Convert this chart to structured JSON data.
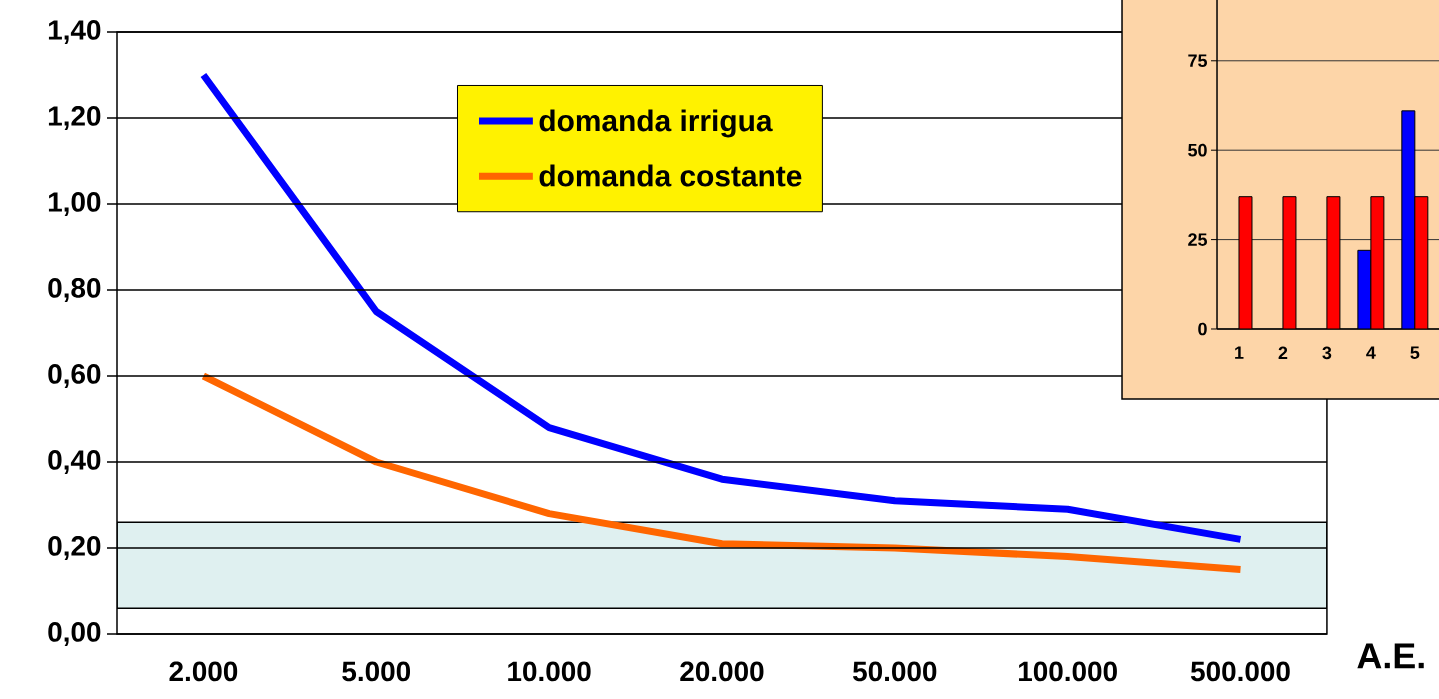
{
  "chart_data": [
    {
      "type": "line",
      "xlabel": "A.E.",
      "categories": [
        "2.000",
        "5.000",
        "10.000",
        "20.000",
        "50.000",
        "100.000",
        "500.000"
      ],
      "series": [
        {
          "name": "domanda irrigua",
          "color": "#0000ff",
          "values": [
            1.3,
            0.75,
            0.48,
            0.36,
            0.31,
            0.29,
            0.22
          ]
        },
        {
          "name": "domanda costante",
          "color": "#ff6600",
          "values": [
            0.6,
            0.4,
            0.28,
            0.21,
            0.2,
            0.18,
            0.15
          ]
        }
      ],
      "ylim": [
        0,
        1.4
      ],
      "yticks": [
        {
          "value": 0,
          "label": "0,00"
        },
        {
          "value": 0.2,
          "label": "0,20"
        },
        {
          "value": 0.4,
          "label": "0,40"
        },
        {
          "value": 0.6,
          "label": "0,60"
        },
        {
          "value": 0.8,
          "label": "0,80"
        },
        {
          "value": 1.0,
          "label": "1,00"
        },
        {
          "value": 1.2,
          "label": "1,20"
        },
        {
          "value": 1.4,
          "label": "1,40"
        }
      ],
      "bands": [
        {
          "axis": "y",
          "from": 0.06,
          "to": 0.26,
          "color": "#dff0f0"
        }
      ],
      "grid": "y",
      "legend": "top",
      "marker": "none",
      "line_style": "solid"
    },
    {
      "type": "bar",
      "categories": [
        "1",
        "2",
        "3",
        "4",
        "5"
      ],
      "series": [
        {
          "color": "#0000ff",
          "values": [
            null,
            null,
            null,
            22,
            61
          ]
        },
        {
          "color": "#ff0000",
          "values": [
            37,
            37,
            37,
            37,
            37
          ]
        }
      ],
      "ylim": [
        0,
        92
      ],
      "yticks": [
        0,
        25,
        50,
        75
      ],
      "grid": "y"
    }
  ]
}
